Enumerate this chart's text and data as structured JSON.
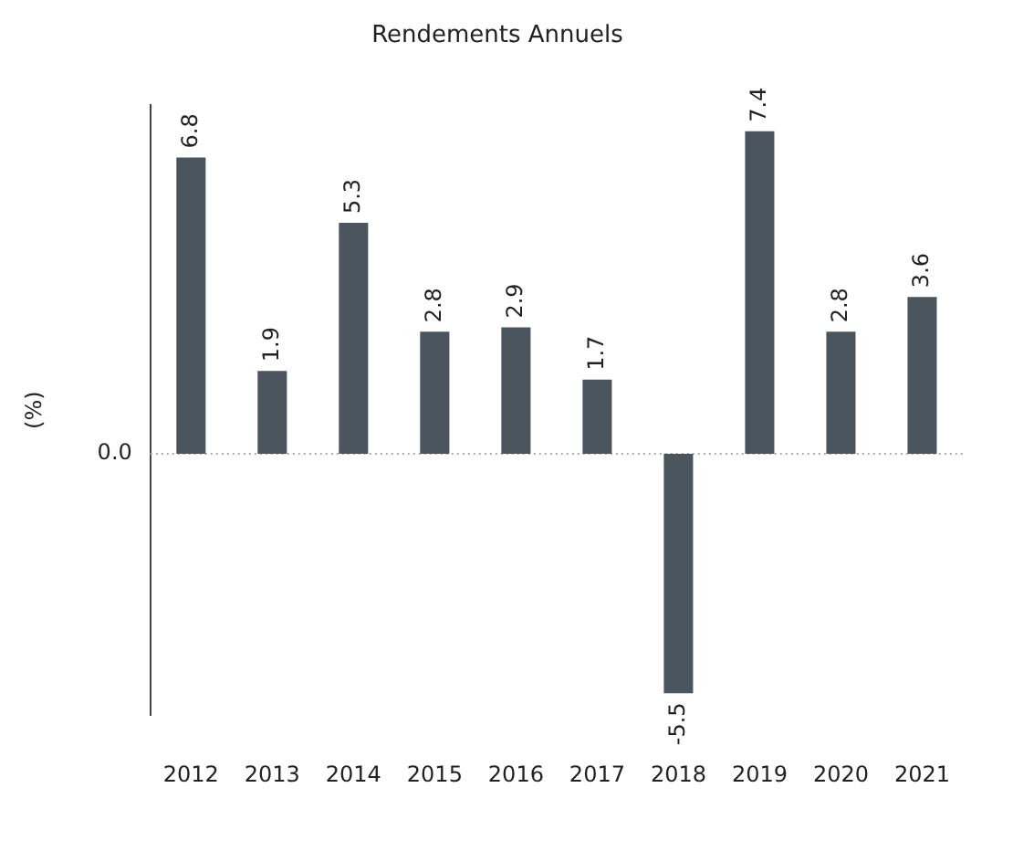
{
  "chart_data": {
    "type": "bar",
    "title": "Rendements Annuels",
    "ylabel": "(%)",
    "categories": [
      "2012",
      "2013",
      "2014",
      "2015",
      "2016",
      "2017",
      "2018",
      "2019",
      "2020",
      "2021"
    ],
    "values": [
      6.8,
      1.9,
      5.3,
      2.8,
      2.9,
      1.7,
      -5.5,
      7.4,
      2.8,
      3.6
    ],
    "color": "#4a555e",
    "ref_lines": [
      {
        "axis": "y",
        "value": 0,
        "label": "0.0",
        "color": "#aaaaaa",
        "line_style": "dotted"
      }
    ],
    "data_labels": true,
    "grid": false,
    "legend": false
  }
}
